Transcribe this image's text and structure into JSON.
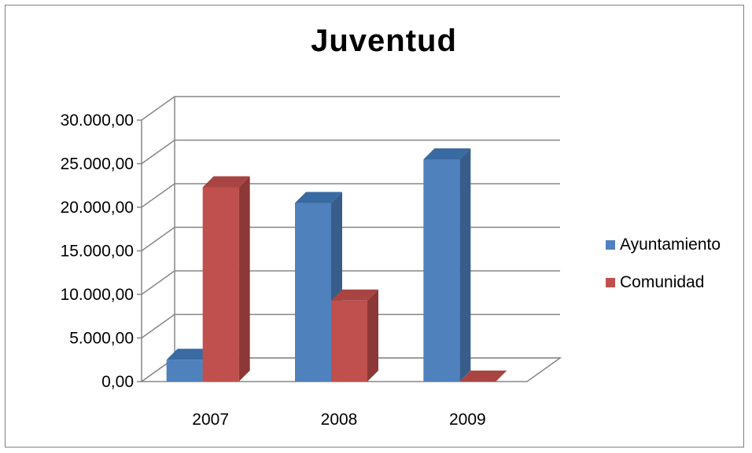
{
  "chart_data": {
    "type": "bar",
    "title": "Juventud",
    "categories": [
      "2007",
      "2008",
      "2009"
    ],
    "series": [
      {
        "name": "Ayuntamiento",
        "values": [
          2500,
          20500,
          25500
        ],
        "color": "#4f81bd",
        "side_color": "#385d8a",
        "top_color": "#3a6aa2"
      },
      {
        "name": "Comunidad",
        "values": [
          22300,
          9300,
          0
        ],
        "color": "#c0504d",
        "side_color": "#8c3836",
        "top_color": "#a84542"
      }
    ],
    "y_ticks": [
      "0,00",
      "5.000,00",
      "10.000,00",
      "15.000,00",
      "20.000,00",
      "25.000,00",
      "30.000,00"
    ],
    "ylim": [
      0,
      30000
    ],
    "grid": true,
    "legend_position": "right"
  }
}
